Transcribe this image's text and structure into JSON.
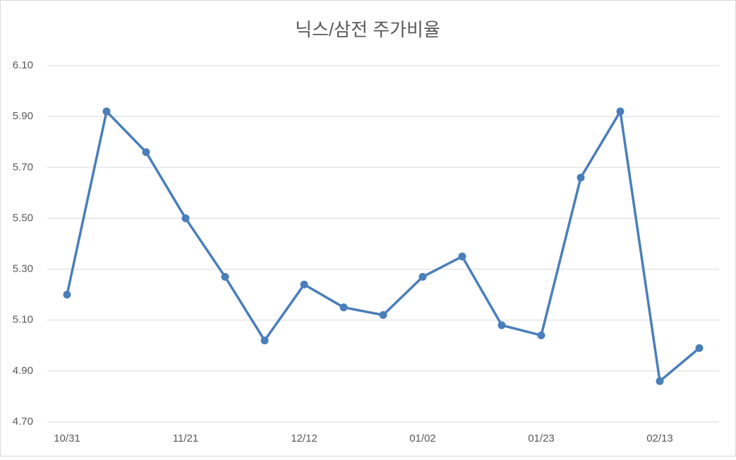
{
  "chart_data": {
    "type": "line",
    "title": "닉스/삼전 주가비율",
    "categories": [
      "10/31",
      null,
      null,
      "11/21",
      null,
      null,
      "12/12",
      null,
      null,
      "01/02",
      null,
      null,
      "01/23",
      null,
      null,
      "02/13",
      null
    ],
    "values": [
      5.2,
      5.92,
      5.76,
      5.5,
      5.27,
      5.02,
      5.24,
      5.15,
      5.12,
      5.27,
      5.35,
      5.08,
      5.04,
      5.66,
      5.92,
      4.86,
      4.99
    ],
    "color": "#4a7ebb",
    "ylim": [
      4.7,
      6.1
    ],
    "yticks": [
      {
        "value": 4.7,
        "label": "4.70"
      },
      {
        "value": 4.9,
        "label": "4.90"
      },
      {
        "value": 5.1,
        "label": "5.10"
      },
      {
        "value": 5.3,
        "label": "5.30"
      },
      {
        "value": 5.5,
        "label": "5.50"
      },
      {
        "value": 5.7,
        "label": "5.70"
      },
      {
        "value": 5.9,
        "label": "5.90"
      },
      {
        "value": 6.1,
        "label": "6.10"
      }
    ],
    "grid": true
  }
}
